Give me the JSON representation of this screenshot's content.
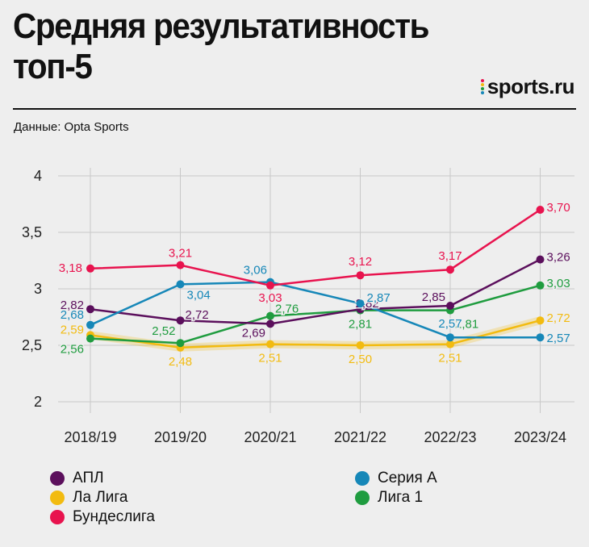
{
  "header": {
    "title_line1": "Средняя результативность",
    "title_line2": "топ-5",
    "brand": "sports.ru",
    "source": "Данные: Opta Sports"
  },
  "chart_data": {
    "type": "line",
    "title": "Средняя результативность топ-5",
    "categories": [
      "2018/19",
      "2019/20",
      "2020/21",
      "2021/22",
      "2022/23",
      "2023/24"
    ],
    "ylim": [
      2,
      4
    ],
    "yticks": [
      "2",
      "2,5",
      "3",
      "3,5",
      "4"
    ],
    "ytick_values": [
      2,
      2.5,
      3,
      3.5,
      4
    ],
    "grid": true,
    "series": [
      {
        "name": "АПЛ",
        "color": "#5b0f5c",
        "values": [
          2.82,
          2.72,
          2.69,
          2.82,
          2.85,
          3.26
        ],
        "labels": [
          "2,82",
          "2,72",
          "2,69",
          "2,82",
          "2,85",
          "3,26"
        ]
      },
      {
        "name": "Ла Лига",
        "color": "#f2bb10",
        "values": [
          2.59,
          2.48,
          2.51,
          2.5,
          2.51,
          2.72
        ],
        "labels": [
          "2,59",
          "2,48",
          "2,51",
          "2,50",
          "2,51",
          "2,72"
        ]
      },
      {
        "name": "Бундеслига",
        "color": "#e8134e",
        "values": [
          3.18,
          3.21,
          3.03,
          3.12,
          3.17,
          3.7
        ],
        "labels": [
          "3,18",
          "3,21",
          "3,03",
          "3,12",
          "3,17",
          "3,70"
        ]
      },
      {
        "name": "Серия А",
        "color": "#1687b8",
        "values": [
          2.68,
          3.04,
          3.06,
          2.87,
          2.57,
          2.57
        ],
        "labels": [
          "2,68",
          "3,04",
          "3,06",
          "2,87",
          "2,57",
          "2,57"
        ]
      },
      {
        "name": "Лига 1",
        "color": "#1f9c3f",
        "values": [
          2.56,
          2.52,
          2.76,
          2.81,
          2.81,
          3.03
        ],
        "labels": [
          "2,56",
          "2,52",
          "2,76",
          "2,81",
          "2,81",
          "3,03"
        ]
      }
    ]
  }
}
